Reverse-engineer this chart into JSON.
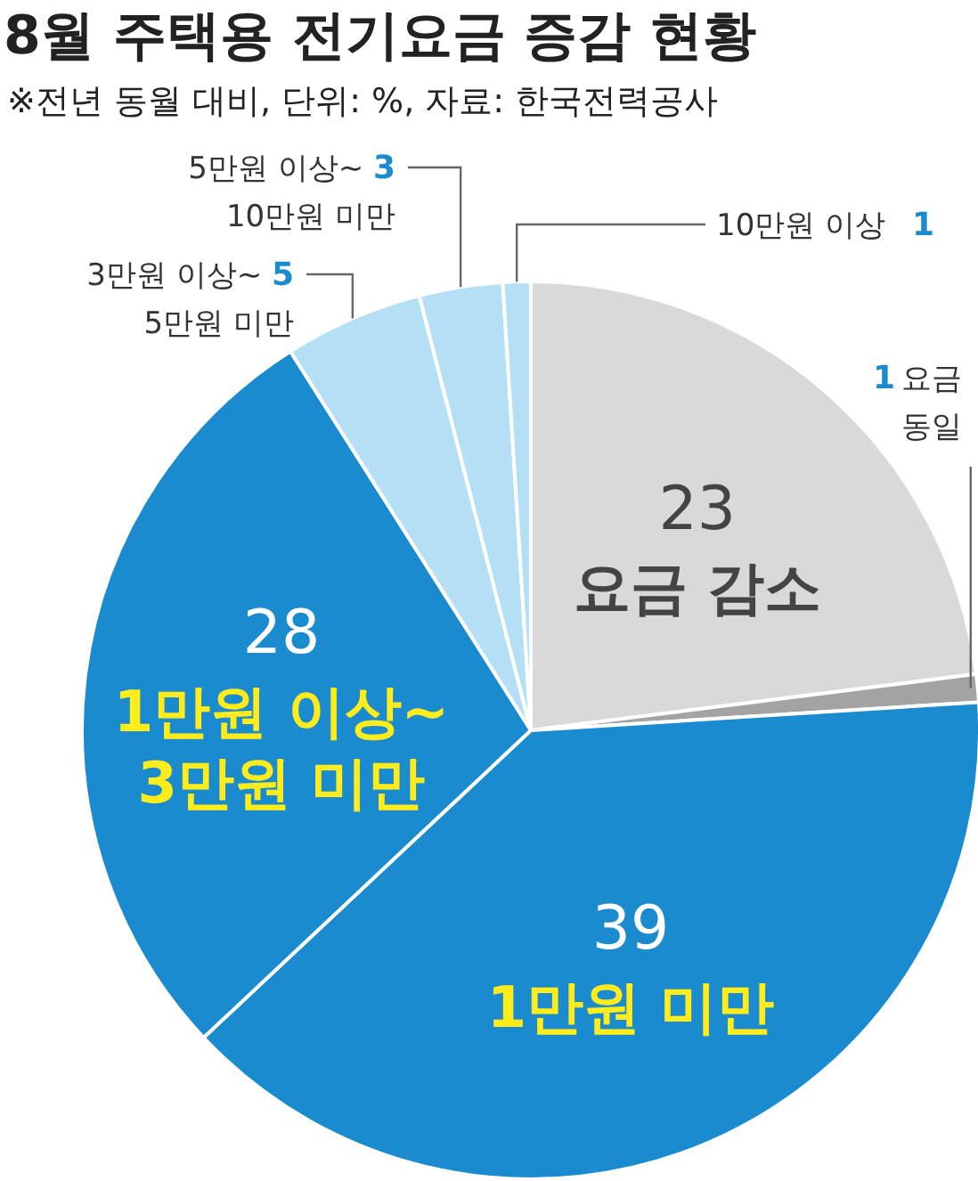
{
  "chart_data": {
    "type": "pie",
    "title": "8월 주택용 전기요금 증감 현황",
    "subtitle": "※전년 동월 대비, 단위: %, 자료: 한국전력공사",
    "categories": [
      "요금 감소",
      "요금\n동일",
      "1만원 미만",
      "1만원 이상~\n3만원 미만",
      "3만원 이상~\n5만원 미만",
      "5만원 이상~\n10만원 미만",
      "10만원 이상"
    ],
    "values": [
      23,
      1,
      39,
      28,
      5,
      3,
      1
    ],
    "colors": [
      "#d9d9d9",
      "#a3a3a3",
      "#1b8bd0",
      "#1b8bd0",
      "#b5dff5",
      "#b5dff5",
      "#b5dff5"
    ],
    "data_labels": true,
    "legend": false
  }
}
